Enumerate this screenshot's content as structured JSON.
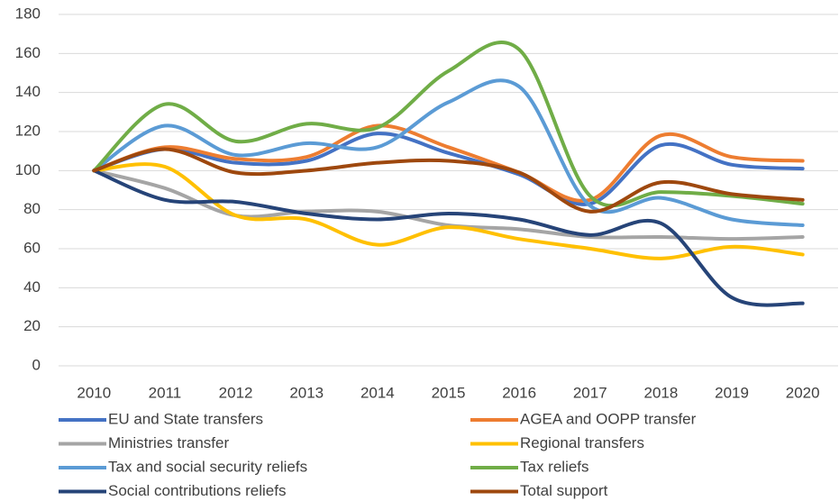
{
  "chart_data": {
    "type": "line",
    "categories": [
      "2010",
      "2011",
      "2012",
      "2013",
      "2014",
      "2015",
      "2016",
      "2017",
      "2018",
      "2019",
      "2020"
    ],
    "ylim": [
      0,
      180
    ],
    "yticks": [
      0,
      20,
      40,
      60,
      80,
      100,
      120,
      140,
      160,
      180
    ],
    "grid": true,
    "smooth": true,
    "legend": "bottom",
    "series": [
      {
        "name": "EU and State transfers",
        "color": "#4472c4",
        "values": [
          100,
          111,
          104,
          105,
          119,
          109,
          98,
          83,
          113,
          103,
          101
        ]
      },
      {
        "name": " AGEA and OOPP transfer",
        "color": "#ed7d31",
        "values": [
          100,
          112,
          106,
          107,
          123,
          112,
          99,
          85,
          118,
          107,
          105
        ]
      },
      {
        "name": "Ministries transfer",
        "color": "#a5a5a5",
        "values": [
          100,
          91,
          77,
          79,
          79,
          72,
          70,
          66,
          66,
          65,
          66
        ]
      },
      {
        "name": "Regional transfers",
        "color": "#ffc000",
        "values": [
          100,
          102,
          77,
          75,
          62,
          71,
          65,
          60,
          55,
          61,
          57
        ]
      },
      {
        "name": "Tax and social security reliefs",
        "color": "#5b9bd5",
        "values": [
          100,
          123,
          108,
          114,
          112,
          135,
          143,
          82,
          86,
          75,
          72
        ]
      },
      {
        "name": "Tax reliefs",
        "color": "#70ad47",
        "values": [
          100,
          134,
          115,
          124,
          122,
          151,
          162,
          87,
          89,
          87,
          83
        ]
      },
      {
        "name": "Social contributions reliefs",
        "color": "#264478",
        "values": [
          100,
          85,
          84,
          78,
          75,
          78,
          75,
          67,
          73,
          35,
          32
        ]
      },
      {
        "name": "Total support",
        "color": "#9e480e",
        "values": [
          100,
          111,
          99,
          100,
          104,
          105,
          99,
          79,
          94,
          88,
          85
        ]
      }
    ]
  }
}
